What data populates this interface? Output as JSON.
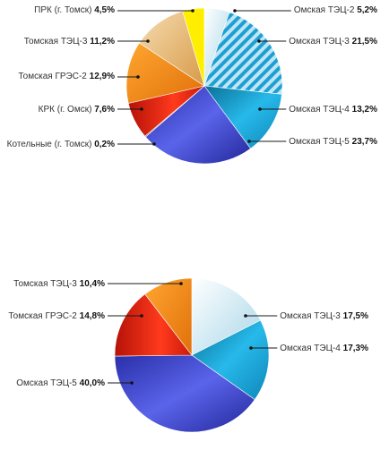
{
  "chart_data": [
    {
      "type": "pie",
      "title": "",
      "slices": [
        {
          "label": "Омская ТЭЦ-2",
          "value": 5.2,
          "value_label": "5,2%",
          "color": "#cfe7ee",
          "side": "right"
        },
        {
          "label": "Омская ТЭЦ-3",
          "value": 21.5,
          "value_label": "21,5%",
          "color": "#1e9fd4",
          "side": "right"
        },
        {
          "label": "Омская ТЭЦ-4",
          "value": 13.2,
          "value_label": "13,2%",
          "color": "#17aee0",
          "side": "right"
        },
        {
          "label": "Омская ТЭЦ-5",
          "value": 23.7,
          "value_label": "23,7%",
          "color": "#4a4fd4",
          "side": "right"
        },
        {
          "label": "Котельные (г. Томск)",
          "value": 0.2,
          "value_label": "0,2%",
          "color": "#333333",
          "side": "left"
        },
        {
          "label": "КРК (г. Омск)",
          "value": 7.6,
          "value_label": "7,6%",
          "color": "#e02a10",
          "side": "left"
        },
        {
          "label": "Томская ГРЭС-2",
          "value": 12.9,
          "value_label": "12,9%",
          "color": "#f58a10",
          "side": "left"
        },
        {
          "label": "Томская ТЭЦ-3",
          "value": 11.2,
          "value_label": "11,2%",
          "color": "#e6b978",
          "side": "left"
        },
        {
          "label": "ПРК (г. Томск)",
          "value": 4.5,
          "value_label": "4,5%",
          "color": "#ffee00",
          "side": "left"
        }
      ]
    },
    {
      "type": "pie",
      "title": "",
      "slices": [
        {
          "label": "Омская ТЭЦ-3",
          "value": 17.5,
          "value_label": "17,5%",
          "color": "#d6eaf2",
          "side": "right"
        },
        {
          "label": "Омская ТЭЦ-4",
          "value": 17.3,
          "value_label": "17,3%",
          "color": "#1798c8",
          "side": "right"
        },
        {
          "label": "Омская ТЭЦ-5",
          "value": 40.0,
          "value_label": "40,0%",
          "color": "#3c3fbf",
          "side": "left"
        },
        {
          "label": "Томская ГРЭС-2",
          "value": 14.8,
          "value_label": "14,8%",
          "color": "#e82010",
          "side": "left"
        },
        {
          "label": "Томская ТЭЦ-3",
          "value": 10.4,
          "value_label": "10,4%",
          "color": "#f7950f",
          "side": "left"
        }
      ]
    }
  ]
}
